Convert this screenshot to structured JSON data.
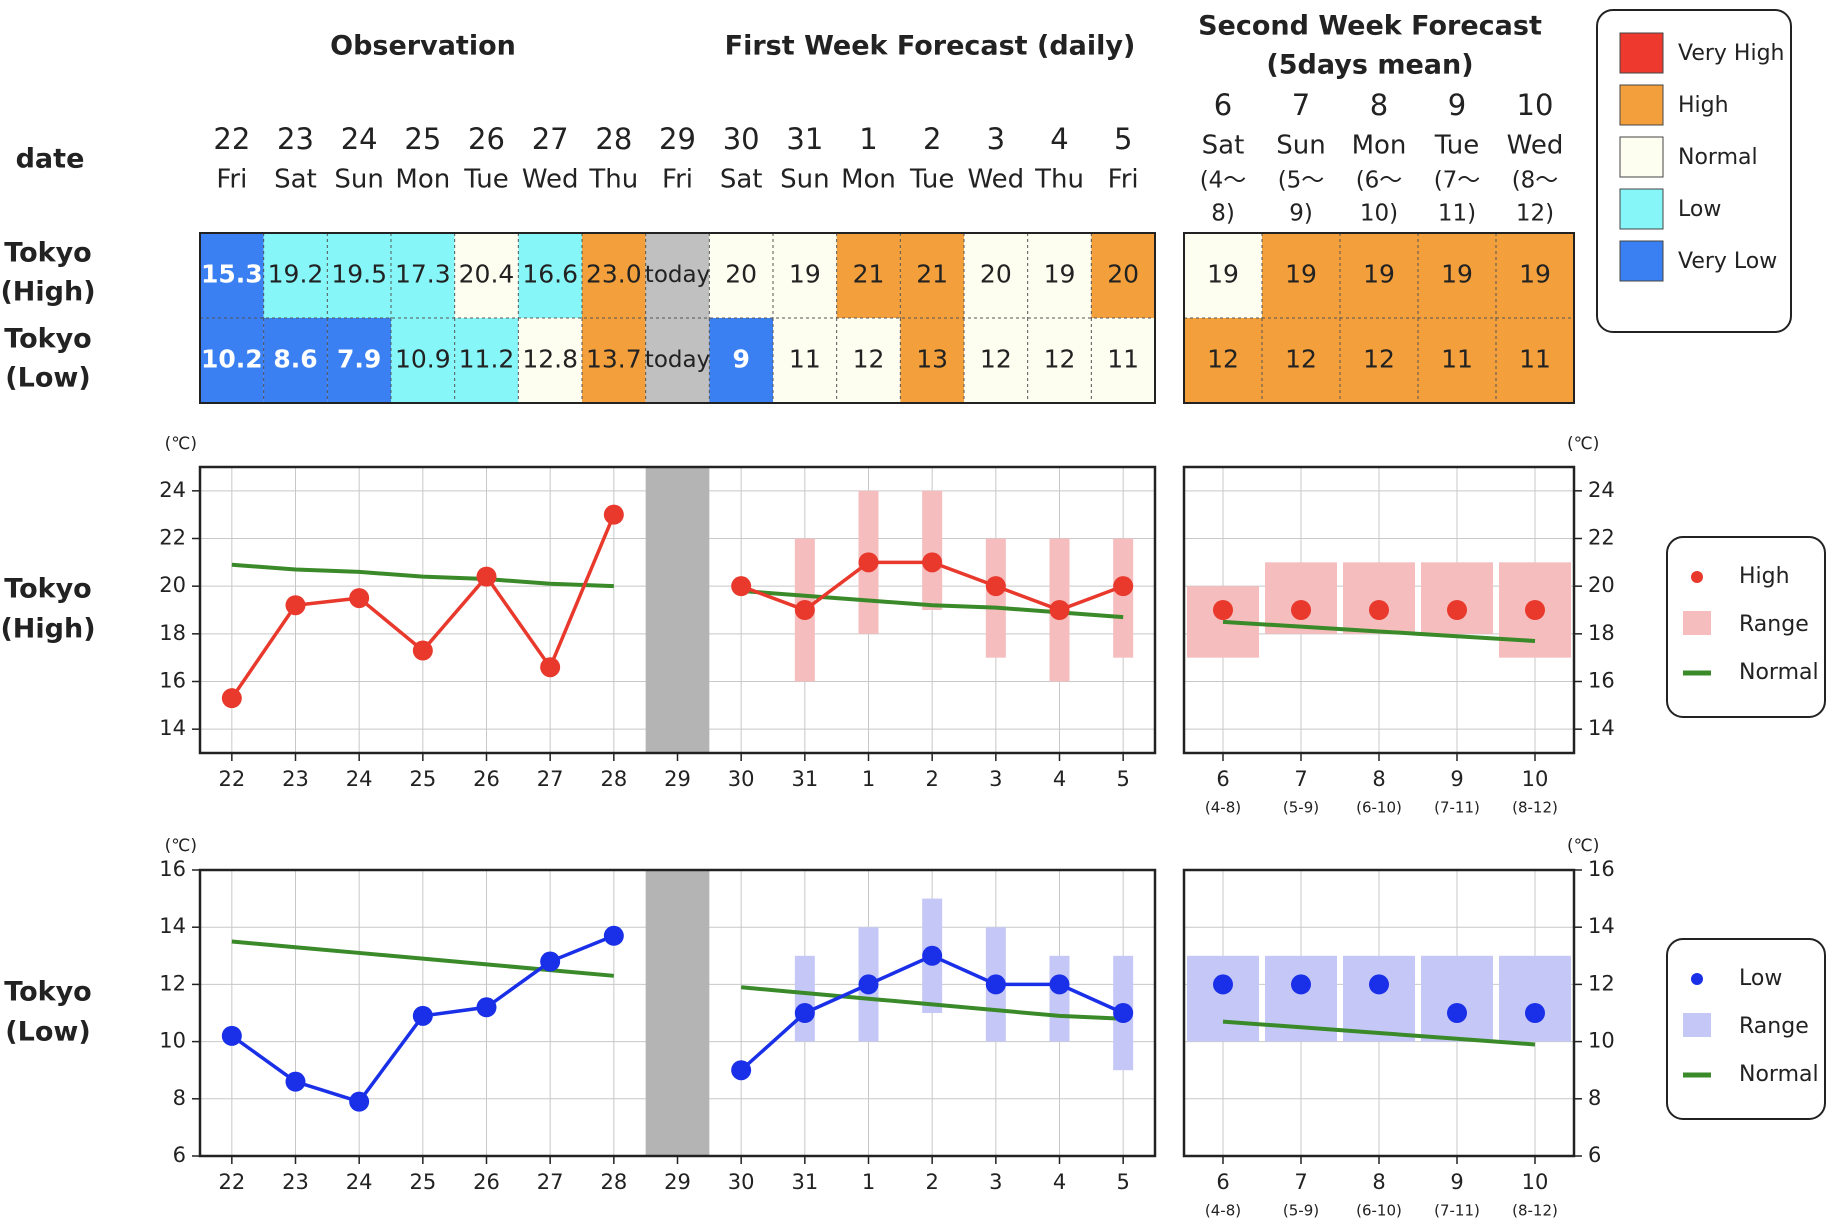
{
  "header": {
    "observation": "Observation",
    "first_week": "First Week Forecast (daily)",
    "second_week": [
      "Second Week Forecast",
      "(5days mean)"
    ],
    "date_label": "date",
    "row_high": [
      "Tokyo",
      "(High)"
    ],
    "row_low": [
      "Tokyo",
      "(Low)"
    ]
  },
  "days": [
    {
      "num": "22",
      "dow": "Fri"
    },
    {
      "num": "23",
      "dow": "Sat"
    },
    {
      "num": "24",
      "dow": "Sun"
    },
    {
      "num": "25",
      "dow": "Mon"
    },
    {
      "num": "26",
      "dow": "Tue"
    },
    {
      "num": "27",
      "dow": "Wed"
    },
    {
      "num": "28",
      "dow": "Thu"
    },
    {
      "num": "29",
      "dow": "Fri"
    },
    {
      "num": "30",
      "dow": "Sat"
    },
    {
      "num": "31",
      "dow": "Sun"
    },
    {
      "num": "1",
      "dow": "Mon"
    },
    {
      "num": "2",
      "dow": "Tue"
    },
    {
      "num": "3",
      "dow": "Wed"
    },
    {
      "num": "4",
      "dow": "Thu"
    },
    {
      "num": "5",
      "dow": "Fri"
    }
  ],
  "week2_days": [
    {
      "num": "6",
      "dow": "Sat",
      "range": [
        "(4～",
        "8)"
      ],
      "axis_range": "(4-8)"
    },
    {
      "num": "7",
      "dow": "Sun",
      "range": [
        "(5～",
        "9)"
      ],
      "axis_range": "(5-9)"
    },
    {
      "num": "8",
      "dow": "Mon",
      "range": [
        "(6～",
        "10)"
      ],
      "axis_range": "(6-10)"
    },
    {
      "num": "9",
      "dow": "Tue",
      "range": [
        "(7～",
        "11)"
      ],
      "axis_range": "(7-11)"
    },
    {
      "num": "10",
      "dow": "Wed",
      "range": [
        "(8～",
        "12)"
      ],
      "axis_range": "(8-12)"
    }
  ],
  "table": {
    "high": [
      {
        "text": "15.3",
        "level": "very_low"
      },
      {
        "text": "19.2",
        "level": "low"
      },
      {
        "text": "19.5",
        "level": "low"
      },
      {
        "text": "17.3",
        "level": "low"
      },
      {
        "text": "20.4",
        "level": "normal"
      },
      {
        "text": "16.6",
        "level": "low"
      },
      {
        "text": "23.0",
        "level": "high"
      },
      {
        "text": "today",
        "level": "today"
      },
      {
        "text": "20",
        "level": "normal"
      },
      {
        "text": "19",
        "level": "normal"
      },
      {
        "text": "21",
        "level": "high"
      },
      {
        "text": "21",
        "level": "high"
      },
      {
        "text": "20",
        "level": "normal"
      },
      {
        "text": "19",
        "level": "normal"
      },
      {
        "text": "20",
        "level": "high"
      }
    ],
    "low": [
      {
        "text": "10.2",
        "level": "very_low"
      },
      {
        "text": "8.6",
        "level": "very_low"
      },
      {
        "text": "7.9",
        "level": "very_low"
      },
      {
        "text": "10.9",
        "level": "low"
      },
      {
        "text": "11.2",
        "level": "low"
      },
      {
        "text": "12.8",
        "level": "normal"
      },
      {
        "text": "13.7",
        "level": "high"
      },
      {
        "text": "today",
        "level": "today"
      },
      {
        "text": "9",
        "level": "very_low"
      },
      {
        "text": "11",
        "level": "normal"
      },
      {
        "text": "12",
        "level": "normal"
      },
      {
        "text": "13",
        "level": "high"
      },
      {
        "text": "12",
        "level": "normal"
      },
      {
        "text": "12",
        "level": "normal"
      },
      {
        "text": "11",
        "level": "normal"
      }
    ],
    "week2_high": [
      {
        "text": "19",
        "level": "normal"
      },
      {
        "text": "19",
        "level": "high"
      },
      {
        "text": "19",
        "level": "high"
      },
      {
        "text": "19",
        "level": "high"
      },
      {
        "text": "19",
        "level": "high"
      }
    ],
    "week2_low": [
      {
        "text": "12",
        "level": "high"
      },
      {
        "text": "12",
        "level": "high"
      },
      {
        "text": "12",
        "level": "high"
      },
      {
        "text": "11",
        "level": "high"
      },
      {
        "text": "11",
        "level": "high"
      }
    ]
  },
  "legend_levels": [
    {
      "key": "very_high",
      "label": "Very High"
    },
    {
      "key": "high",
      "label": "High"
    },
    {
      "key": "normal",
      "label": "Normal"
    },
    {
      "key": "low",
      "label": "Low"
    },
    {
      "key": "very_low",
      "label": "Very Low"
    }
  ],
  "colors": {
    "very_high": "#ee3a2e",
    "high": "#f3a03c",
    "normal": "#fdfdf0",
    "low": "#86f6f8",
    "very_low": "#3b80f2",
    "today": "#c0c0c0",
    "high_line": "#e8392c",
    "high_range": "#f5bdbd",
    "low_line": "#1a2fe8",
    "low_range": "#c5c8f6",
    "normal_line": "#3a8a2a"
  },
  "chart_data": [
    {
      "type": "line",
      "title": "",
      "row_label": [
        "Tokyo",
        "(High)"
      ],
      "unit": "(℃)",
      "ylim": [
        13,
        25
      ],
      "yticks": [
        14,
        16,
        18,
        20,
        22,
        24
      ],
      "grid": true,
      "observation": {
        "x": [
          "22",
          "23",
          "24",
          "25",
          "26",
          "27",
          "28"
        ],
        "values": [
          15.3,
          19.2,
          19.5,
          17.3,
          20.4,
          16.6,
          23.0
        ],
        "normal": [
          20.9,
          20.7,
          20.6,
          20.4,
          20.3,
          20.1,
          20.0
        ]
      },
      "today_x": "29",
      "forecast": {
        "x": [
          "30",
          "31",
          "1",
          "2",
          "3",
          "4",
          "5"
        ],
        "values": [
          20,
          19,
          21,
          21,
          20,
          19,
          20
        ],
        "range": [
          [
            20,
            20
          ],
          [
            16,
            22
          ],
          [
            18,
            24
          ],
          [
            19,
            24
          ],
          [
            17,
            22
          ],
          [
            16,
            22
          ],
          [
            17,
            22
          ]
        ],
        "normal": [
          19.8,
          19.6,
          19.4,
          19.2,
          19.1,
          18.9,
          18.7
        ]
      },
      "week2": {
        "x": [
          "6",
          "7",
          "8",
          "9",
          "10"
        ],
        "values": [
          19,
          19,
          19,
          19,
          19
        ],
        "range": [
          [
            17,
            20
          ],
          [
            18,
            21
          ],
          [
            18,
            21
          ],
          [
            18,
            21
          ],
          [
            17,
            21
          ]
        ],
        "normal": [
          18.5,
          18.3,
          18.1,
          17.9,
          17.7
        ]
      },
      "legend": {
        "position": "right",
        "point": "High",
        "range": "Range",
        "normal": "Normal"
      }
    },
    {
      "type": "line",
      "title": "",
      "row_label": [
        "Tokyo",
        "(Low)"
      ],
      "unit": "(℃)",
      "ylim": [
        6,
        16
      ],
      "yticks": [
        6,
        8,
        10,
        12,
        14,
        16
      ],
      "grid": true,
      "observation": {
        "x": [
          "22",
          "23",
          "24",
          "25",
          "26",
          "27",
          "28"
        ],
        "values": [
          10.2,
          8.6,
          7.9,
          10.9,
          11.2,
          12.8,
          13.7
        ],
        "normal": [
          13.5,
          13.3,
          13.1,
          12.9,
          12.7,
          12.5,
          12.3
        ]
      },
      "today_x": "29",
      "forecast": {
        "x": [
          "30",
          "31",
          "1",
          "2",
          "3",
          "4",
          "5"
        ],
        "values": [
          9,
          11,
          12,
          13,
          12,
          12,
          11
        ],
        "range": [
          [
            9,
            9
          ],
          [
            10,
            13
          ],
          [
            10,
            14
          ],
          [
            11,
            15
          ],
          [
            10,
            14
          ],
          [
            10,
            13
          ],
          [
            9,
            13
          ]
        ],
        "normal": [
          11.9,
          11.7,
          11.5,
          11.3,
          11.1,
          10.9,
          10.8
        ]
      },
      "week2": {
        "x": [
          "6",
          "7",
          "8",
          "9",
          "10"
        ],
        "values": [
          12,
          12,
          12,
          11,
          11
        ],
        "range": [
          [
            10,
            13
          ],
          [
            10,
            13
          ],
          [
            10,
            13
          ],
          [
            10,
            13
          ],
          [
            10,
            13
          ]
        ],
        "normal": [
          10.7,
          10.5,
          10.3,
          10.1,
          9.9
        ]
      },
      "legend": {
        "position": "right",
        "point": "Low",
        "range": "Range",
        "normal": "Normal"
      }
    }
  ]
}
